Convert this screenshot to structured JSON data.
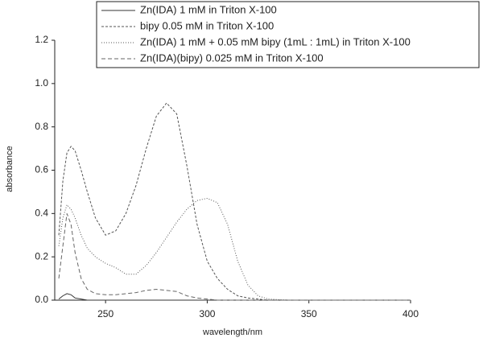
{
  "chart_data": {
    "type": "line",
    "x_label": "wavelength/nm",
    "y_label": "absorbance",
    "x": [
      227,
      229,
      231,
      233,
      235,
      238,
      241,
      245,
      250,
      255,
      260,
      265,
      270,
      275,
      280,
      285,
      290,
      295,
      300,
      305,
      310,
      315,
      320,
      325,
      330,
      340,
      350,
      400
    ],
    "series": [
      {
        "name": "Zn(IDA) 1 mM in Triton X-100",
        "color": "#333333",
        "dash": "none",
        "values": [
          0.005,
          0.02,
          0.03,
          0.025,
          0.01,
          0.005,
          0,
          0,
          0,
          0,
          0,
          0,
          0,
          0,
          0,
          0,
          0,
          0,
          0,
          0,
          0,
          0,
          0,
          0,
          0,
          0,
          0,
          0
        ]
      },
      {
        "name": "bipy 0.05 mM in Triton X-100",
        "color": "#555555",
        "dash": "3,2",
        "values": [
          0.3,
          0.55,
          0.68,
          0.71,
          0.69,
          0.6,
          0.5,
          0.38,
          0.3,
          0.32,
          0.4,
          0.53,
          0.7,
          0.85,
          0.91,
          0.86,
          0.62,
          0.35,
          0.18,
          0.1,
          0.05,
          0.02,
          0.01,
          0.005,
          0,
          0,
          0,
          0
        ]
      },
      {
        "name": "Zn(IDA) 1 mM + 0.05 mM bipy (1mL : 1mL) in Triton X-100",
        "color": "#555555",
        "dash": "1,2",
        "values": [
          0.25,
          0.38,
          0.44,
          0.42,
          0.38,
          0.3,
          0.24,
          0.2,
          0.17,
          0.15,
          0.12,
          0.12,
          0.16,
          0.22,
          0.29,
          0.36,
          0.42,
          0.46,
          0.47,
          0.45,
          0.35,
          0.18,
          0.07,
          0.02,
          0.005,
          0,
          0,
          0
        ]
      },
      {
        "name": "Zn(IDA)(bipy) 0.025 mM in Triton X-100",
        "color": "#666666",
        "dash": "5,3",
        "values": [
          0.1,
          0.25,
          0.4,
          0.35,
          0.22,
          0.1,
          0.05,
          0.03,
          0.025,
          0.025,
          0.03,
          0.035,
          0.045,
          0.05,
          0.045,
          0.04,
          0.02,
          0.01,
          0.005,
          0,
          0,
          0,
          0,
          0,
          0,
          0,
          0,
          0
        ]
      }
    ],
    "xlim": [
      225,
      400
    ],
    "xticks": [
      250,
      300,
      350,
      400
    ],
    "ylim": [
      0,
      1.2
    ],
    "yticks": [
      {
        "value": 0,
        "label": "0.0"
      },
      0.2,
      0.4,
      0.6,
      0.8,
      {
        "value": 1,
        "label": "1.0"
      },
      1.2
    ],
    "grid": false,
    "legend": "top-right"
  }
}
